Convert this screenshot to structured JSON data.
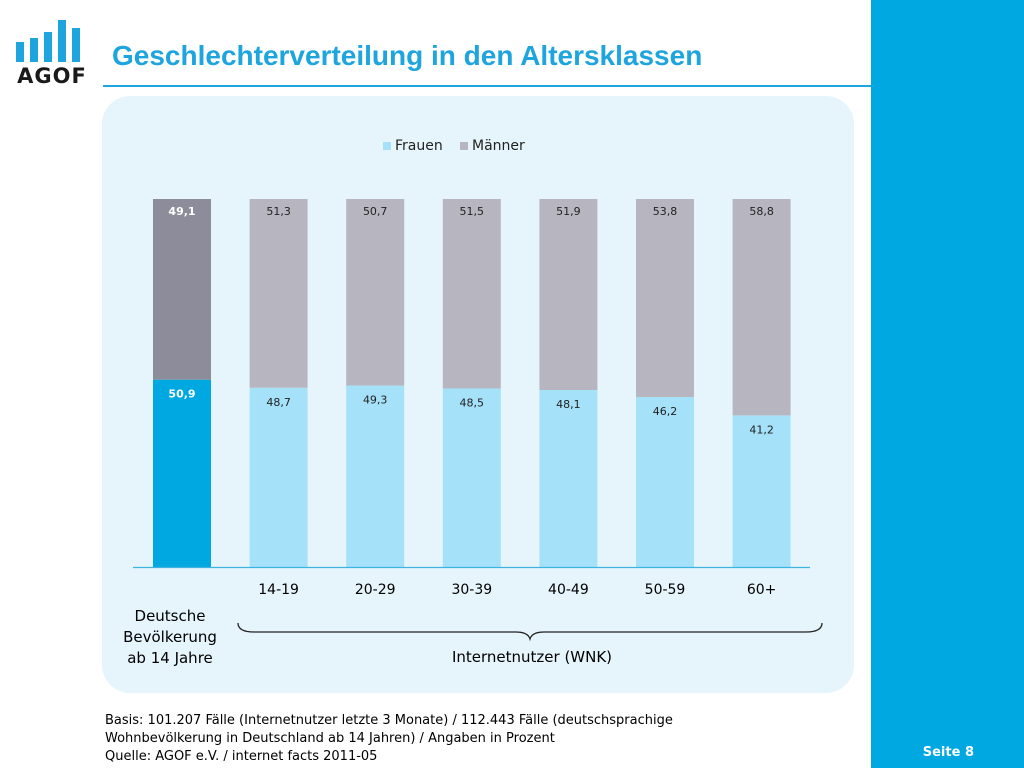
{
  "header": {
    "logo_text": "AGOF",
    "title": "Geschlechterverteilung in den Altersklassen"
  },
  "chart_data": {
    "type": "bar",
    "stacked": true,
    "categories": [
      "Deutsche Bevölkerung ab 14 Jahre",
      "14-19",
      "20-29",
      "30-39",
      "40-49",
      "50-59",
      "60+"
    ],
    "series": [
      {
        "name": "Frauen",
        "values": [
          50.9,
          48.7,
          49.3,
          48.5,
          48.1,
          46.2,
          41.2
        ],
        "value_labels": [
          "50,9",
          "48,7",
          "49,3",
          "48,5",
          "48,1",
          "46,2",
          "41,2"
        ]
      },
      {
        "name": "Männer",
        "values": [
          49.1,
          51.3,
          50.7,
          51.5,
          51.9,
          53.8,
          58.8
        ],
        "value_labels": [
          "49,1",
          "51,3",
          "50,7",
          "51,5",
          "51,9",
          "53,8",
          "58,8"
        ]
      }
    ],
    "ylim": [
      0,
      100
    ],
    "legend": "top-center",
    "colors": {
      "Frauen": "#a6e1fa",
      "Männer": "#b7b6c0",
      "Frauen_highlight": "#00a8e1",
      "Männer_highlight": "#8d8c9a"
    },
    "group_brace_label": "Internetnutzer (WNK)",
    "first_category_lines": [
      "Deutsche",
      "Bevölkerung",
      "ab 14 Jahre"
    ]
  },
  "footnote": {
    "line1": "Basis: 101.207 Fälle (Internetnutzer letzte 3 Monate) / 112.443 Fälle (deutschsprachige",
    "line2": "Wohnbevölkerung in Deutschland ab 14 Jahren) / Angaben in Prozent",
    "line3": "Quelle: AGOF e.V. / internet facts 2011-05"
  },
  "page": {
    "label": "Seite 8"
  }
}
